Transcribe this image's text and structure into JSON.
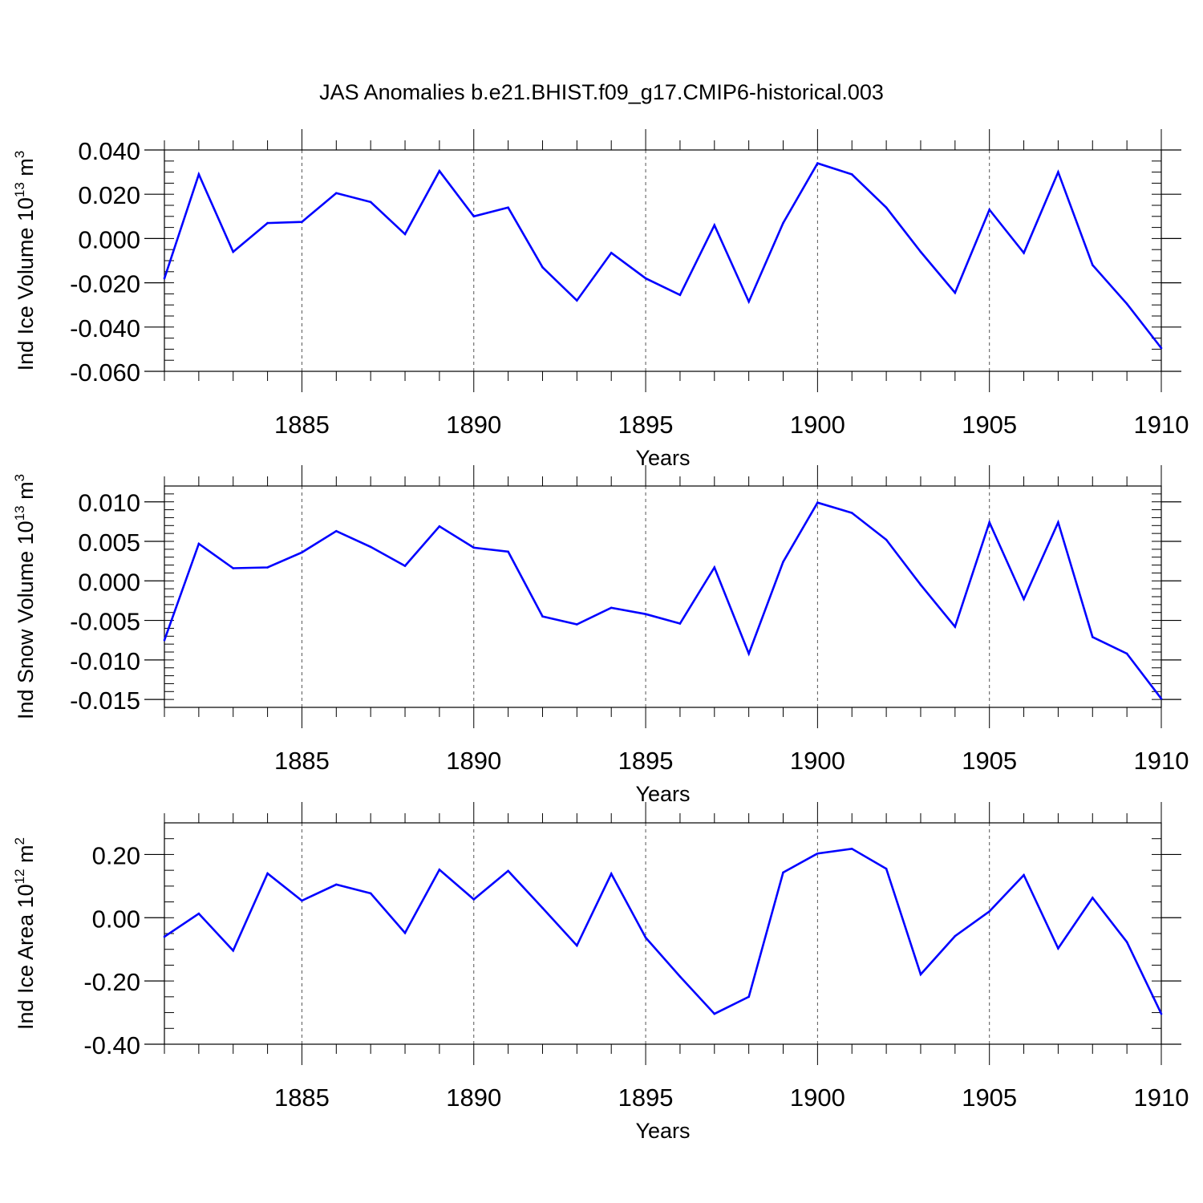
{
  "title": "JAS Anomalies b.e21.BHIST.f09_g17.CMIP6-historical.003",
  "line_color": "#0000ff",
  "chart_data": [
    {
      "type": "line",
      "xlabel": "Years",
      "ylabel": "Ind Ice Volume 10",
      "ylabel_sup1": "13",
      "ylabel_unit": " m",
      "ylabel_sup2": "3",
      "x": [
        1881,
        1882,
        1883,
        1884,
        1885,
        1886,
        1887,
        1888,
        1889,
        1890,
        1891,
        1892,
        1893,
        1894,
        1895,
        1896,
        1897,
        1898,
        1899,
        1900,
        1901,
        1902,
        1903,
        1904,
        1905,
        1906,
        1907,
        1908,
        1909,
        1910
      ],
      "values": [
        -0.018,
        0.029,
        -0.006,
        0.007,
        0.0075,
        0.0205,
        0.0165,
        0.002,
        0.0305,
        0.01,
        0.014,
        -0.013,
        -0.028,
        -0.0065,
        -0.018,
        -0.0255,
        0.006,
        -0.0285,
        0.007,
        0.034,
        0.029,
        0.014,
        -0.006,
        -0.0245,
        0.013,
        -0.0065,
        0.03,
        -0.012,
        -0.0295,
        -0.0495
      ],
      "xlim": [
        1881,
        1910
      ],
      "ylim": [
        -0.06,
        0.04
      ],
      "xticks": [
        1885,
        1890,
        1895,
        1900,
        1905,
        1910
      ],
      "yticks": [
        0.04,
        0.02,
        0.0,
        -0.02,
        -0.04,
        -0.06
      ],
      "ytick_labels": [
        "0.040",
        "0.020",
        "0.000",
        "-0.020",
        "-0.040",
        "-0.060"
      ],
      "yminor_step": 0.005
    },
    {
      "type": "line",
      "xlabel": "Years",
      "ylabel": "Ind Snow Volume 10",
      "ylabel_sup1": "13",
      "ylabel_unit": " m",
      "ylabel_sup2": "3",
      "x": [
        1881,
        1882,
        1883,
        1884,
        1885,
        1886,
        1887,
        1888,
        1889,
        1890,
        1891,
        1892,
        1893,
        1894,
        1895,
        1896,
        1897,
        1898,
        1899,
        1900,
        1901,
        1902,
        1903,
        1904,
        1905,
        1906,
        1907,
        1908,
        1909,
        1910
      ],
      "values": [
        -0.0075,
        0.0047,
        0.0016,
        0.0017,
        0.0036,
        0.0063,
        0.0043,
        0.0019,
        0.0069,
        0.0042,
        0.0037,
        -0.0045,
        -0.0055,
        -0.0034,
        -0.0042,
        -0.0054,
        0.0017,
        -0.0092,
        0.0024,
        0.0099,
        0.0086,
        0.0052,
        -0.0005,
        -0.0058,
        0.0074,
        -0.0023,
        0.0074,
        -0.0071,
        -0.0092,
        -0.0149
      ],
      "xlim": [
        1881,
        1910
      ],
      "ylim": [
        -0.016,
        0.012
      ],
      "xticks": [
        1885,
        1890,
        1895,
        1900,
        1905,
        1910
      ],
      "yticks": [
        0.01,
        0.005,
        0.0,
        -0.005,
        -0.01,
        -0.015
      ],
      "ytick_labels": [
        "0.010",
        "0.005",
        "0.000",
        "-0.005",
        "-0.010",
        "-0.015"
      ],
      "yminor_step": 0.001
    },
    {
      "type": "line",
      "xlabel": "Years",
      "ylabel": "Ind Ice Area 10",
      "ylabel_sup1": "12",
      "ylabel_unit": " m",
      "ylabel_sup2": "2",
      "x": [
        1881,
        1882,
        1883,
        1884,
        1885,
        1886,
        1887,
        1888,
        1889,
        1890,
        1891,
        1892,
        1893,
        1894,
        1895,
        1896,
        1897,
        1898,
        1899,
        1900,
        1901,
        1902,
        1903,
        1904,
        1905,
        1906,
        1907,
        1908,
        1909,
        1910
      ],
      "values": [
        -0.06,
        0.013,
        -0.104,
        0.14,
        0.054,
        0.105,
        0.077,
        -0.048,
        0.152,
        0.058,
        0.148,
        0.031,
        -0.088,
        0.139,
        -0.063,
        -0.186,
        -0.304,
        -0.25,
        0.143,
        0.203,
        0.218,
        0.155,
        -0.179,
        -0.058,
        0.02,
        0.135,
        -0.097,
        0.063,
        -0.077,
        -0.304
      ],
      "xlim": [
        1881,
        1910
      ],
      "ylim": [
        -0.4,
        0.3
      ],
      "xticks": [
        1885,
        1890,
        1895,
        1900,
        1905,
        1910
      ],
      "yticks": [
        0.2,
        0.0,
        -0.2,
        -0.4
      ],
      "ytick_labels": [
        "0.20",
        "0.00",
        "-0.20",
        "-0.40"
      ],
      "yminor_step": 0.05
    }
  ]
}
